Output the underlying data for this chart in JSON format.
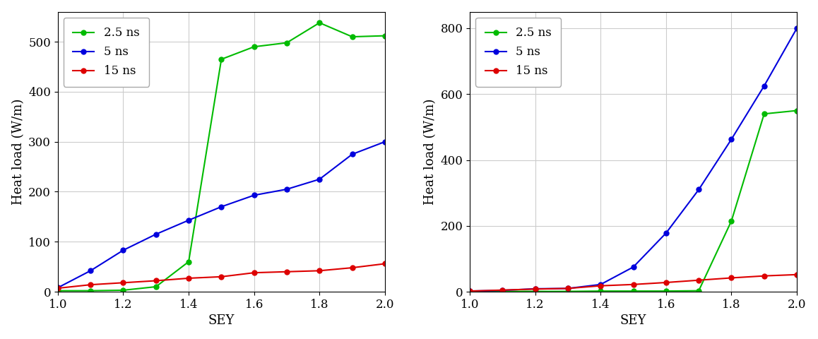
{
  "sey": [
    1.0,
    1.1,
    1.2,
    1.3,
    1.4,
    1.5,
    1.6,
    1.7,
    1.8,
    1.9,
    2.0
  ],
  "left_2p5ns": [
    2,
    2,
    3,
    10,
    60,
    465,
    490,
    498,
    538,
    510,
    512
  ],
  "left_5ns": [
    8,
    42,
    83,
    115,
    143,
    170,
    193,
    205,
    225,
    275,
    300
  ],
  "left_15ns": [
    7,
    14,
    18,
    22,
    27,
    30,
    38,
    40,
    42,
    48,
    56
  ],
  "right_2p5ns": [
    1,
    1,
    1,
    1,
    2,
    2,
    2,
    3,
    215,
    540,
    550
  ],
  "right_5ns": [
    2,
    4,
    9,
    10,
    22,
    75,
    178,
    310,
    463,
    625,
    800
  ],
  "right_15ns": [
    2,
    5,
    8,
    10,
    18,
    22,
    28,
    35,
    42,
    48,
    52
  ],
  "color_2p5ns": "#00bb00",
  "color_5ns": "#0000dd",
  "color_15ns": "#dd0000",
  "ylabel": "Heat load (W/m)",
  "xlabel": "SEY",
  "left_ylim": [
    0,
    560
  ],
  "right_ylim": [
    0,
    850
  ],
  "left_yticks": [
    0,
    100,
    200,
    300,
    400,
    500
  ],
  "right_yticks": [
    0,
    200,
    400,
    600,
    800
  ],
  "xticks": [
    1.0,
    1.2,
    1.4,
    1.6,
    1.8,
    2.0
  ],
  "legend_labels": [
    "2.5 ns",
    "5 ns",
    "15 ns"
  ],
  "background_color": "#ffffff",
  "grid_color": "#cccccc"
}
